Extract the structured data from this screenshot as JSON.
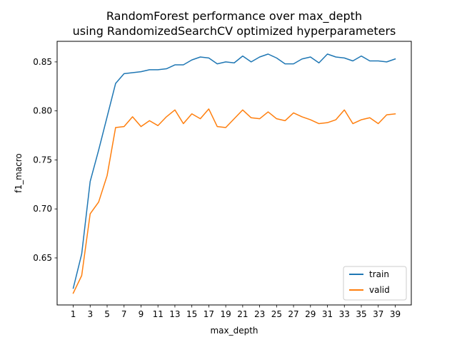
{
  "chart_data": {
    "type": "line",
    "title_line1": "RandomForest performance over max_depth",
    "title_line2": "using RandomizedSearchCV optimized hyperparameters",
    "xlabel": "max_depth",
    "ylabel": "f1_macro",
    "x": [
      1,
      2,
      3,
      4,
      5,
      6,
      7,
      8,
      9,
      10,
      11,
      12,
      13,
      14,
      15,
      16,
      17,
      18,
      19,
      20,
      21,
      22,
      23,
      24,
      25,
      26,
      27,
      28,
      29,
      30,
      31,
      32,
      33,
      34,
      35,
      36,
      37,
      38,
      39
    ],
    "xticks": [
      1,
      3,
      5,
      7,
      9,
      11,
      13,
      15,
      17,
      19,
      21,
      23,
      25,
      27,
      29,
      31,
      33,
      35,
      37,
      39
    ],
    "xlim": [
      -0.9,
      40.9
    ],
    "yticks": [
      0.65,
      0.7,
      0.75,
      0.8,
      0.85
    ],
    "ytick_labels": [
      "0.65",
      "0.70",
      "0.75",
      "0.80",
      "0.85"
    ],
    "ylim": [
      0.602,
      0.871
    ],
    "legend_position": "lower-right",
    "series": [
      {
        "name": "train",
        "color": "#1f77b4",
        "values": [
          0.619,
          0.654,
          0.728,
          0.76,
          0.794,
          0.828,
          0.838,
          0.839,
          0.84,
          0.842,
          0.842,
          0.843,
          0.847,
          0.847,
          0.852,
          0.855,
          0.854,
          0.848,
          0.85,
          0.849,
          0.856,
          0.85,
          0.855,
          0.858,
          0.854,
          0.848,
          0.848,
          0.853,
          0.855,
          0.849,
          0.858,
          0.855,
          0.854,
          0.851,
          0.856,
          0.851,
          0.851,
          0.85,
          0.853
        ]
      },
      {
        "name": "valid",
        "color": "#ff7f0e",
        "values": [
          0.614,
          0.632,
          0.695,
          0.707,
          0.734,
          0.783,
          0.784,
          0.794,
          0.784,
          0.79,
          0.785,
          0.794,
          0.801,
          0.787,
          0.797,
          0.792,
          0.802,
          0.784,
          0.783,
          0.792,
          0.801,
          0.793,
          0.792,
          0.799,
          0.792,
          0.79,
          0.798,
          0.794,
          0.791,
          0.787,
          0.788,
          0.791,
          0.801,
          0.787,
          0.791,
          0.793,
          0.787,
          0.796,
          0.797
        ]
      }
    ]
  }
}
